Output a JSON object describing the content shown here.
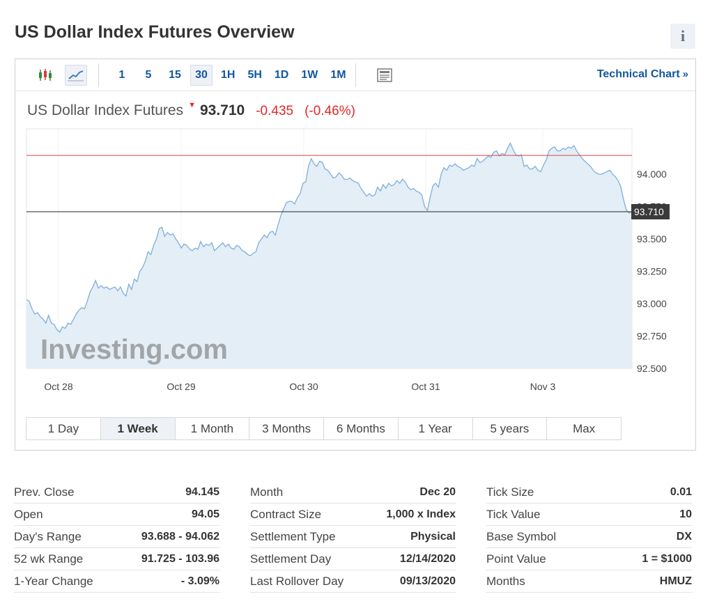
{
  "page": {
    "title": "US Dollar Index Futures Overview",
    "info_icon": "info-icon",
    "info_glyph": "i"
  },
  "toolbar": {
    "chart_type_icons": [
      "candlestick-icon",
      "line-chart-icon"
    ],
    "intervals": [
      "1",
      "5",
      "15",
      "30",
      "1H",
      "5H",
      "1D",
      "1W",
      "1M"
    ],
    "active_interval": "30",
    "news_icon": "news-icon",
    "technical_chart_label": "Technical Chart",
    "technical_chart_arrow": "»"
  },
  "quote": {
    "name": "US Dollar Index Futures",
    "direction_glyph": "▼",
    "price": "93.710",
    "change": "-0.435",
    "change_pct": "(-0.46%)"
  },
  "colors": {
    "accent_link": "#1256a0",
    "negative": "#e32727",
    "line": "#7eaedb",
    "area": "#e4eef6",
    "prev_close_line": "#d64545",
    "current_line": "#222222"
  },
  "chart_data": {
    "type": "area",
    "watermark": "Investing.com",
    "x_tick_labels": [
      "Oct 28",
      "Oct 29",
      "Oct 30",
      "Oct 31",
      "Nov 3"
    ],
    "y_ticks": [
      "94.000",
      "93.750",
      "93.500",
      "93.250",
      "93.000",
      "92.750",
      "92.500"
    ],
    "ylim": [
      92.5,
      94.35
    ],
    "prev_close": 94.145,
    "last_price_label": "93.710",
    "last_price": 93.71,
    "series": [
      {
        "values": [
          93.03,
          93.02,
          92.96,
          92.92,
          92.93,
          92.9,
          92.88,
          92.85,
          92.91,
          92.85,
          92.84,
          92.8,
          92.78,
          92.82,
          92.81,
          92.85,
          92.84,
          92.88,
          92.92,
          92.95,
          92.97,
          92.96,
          93.02,
          93.09,
          93.13,
          93.18,
          93.12,
          93.14,
          93.12,
          93.13,
          93.11,
          93.12,
          93.13,
          93.1,
          93.13,
          93.08,
          93.06,
          93.15,
          93.11,
          93.19,
          93.17,
          93.25,
          93.28,
          93.33,
          93.4,
          93.38,
          93.45,
          93.5,
          93.58,
          93.59,
          93.52,
          93.55,
          93.53,
          93.54,
          93.5,
          93.47,
          93.43,
          93.46,
          93.45,
          93.42,
          93.41,
          93.43,
          93.42,
          93.48,
          93.44,
          93.46,
          93.45,
          93.47,
          93.41,
          93.43,
          93.45,
          93.47,
          93.44,
          93.46,
          93.43,
          93.42,
          93.45,
          93.44,
          93.41,
          93.4,
          93.38,
          93.37,
          93.39,
          93.4,
          93.47,
          93.5,
          93.53,
          93.51,
          93.55,
          93.56,
          93.53,
          93.61,
          93.68,
          93.73,
          93.78,
          93.79,
          93.79,
          93.77,
          93.82,
          93.85,
          93.93,
          93.94,
          94.06,
          94.12,
          94.08,
          94.06,
          94.1,
          94.09,
          94.04,
          94.03,
          94.0,
          93.97,
          93.98,
          94.01,
          93.99,
          93.96,
          93.96,
          93.97,
          93.95,
          93.94,
          93.93,
          93.89,
          93.86,
          93.83,
          93.85,
          93.83,
          93.84,
          93.9,
          93.87,
          93.92,
          93.89,
          93.93,
          93.91,
          93.92,
          93.95,
          93.93,
          93.96,
          93.94,
          93.9,
          93.88,
          93.89,
          93.87,
          93.86,
          93.84,
          93.75,
          93.72,
          93.82,
          93.91,
          93.93,
          93.9,
          94.0,
          94.05,
          94.03,
          94.07,
          94.06,
          94.08,
          94.06,
          94.05,
          94.03,
          94.04,
          94.05,
          94.07,
          94.06,
          94.12,
          94.09,
          94.1,
          94.12,
          94.14,
          94.13,
          94.17,
          94.18,
          94.14,
          94.16,
          94.15,
          94.2,
          94.24,
          94.19,
          94.15,
          94.14,
          94.15,
          94.06,
          94.07,
          94.04,
          94.04,
          94.06,
          94.03,
          94.02,
          94.07,
          94.11,
          94.18,
          94.2,
          94.21,
          94.18,
          94.18,
          94.2,
          94.19,
          94.21,
          94.2,
          94.22,
          94.18,
          94.15,
          94.12,
          94.1,
          94.08,
          94.06,
          94.03,
          94.01,
          94.0,
          94.0,
          94.01,
          94.02,
          94.03,
          94.0,
          93.98,
          93.95,
          93.9,
          93.8,
          93.72,
          93.7,
          93.71
        ]
      }
    ]
  },
  "range_tabs": [
    "1 Day",
    "1 Week",
    "1 Month",
    "3 Months",
    "6 Months",
    "1 Year",
    "5 years",
    "Max"
  ],
  "active_range": "1 Week",
  "stats": [
    [
      {
        "label": "Prev. Close",
        "value": "94.145"
      },
      {
        "label": "Open",
        "value": "94.05"
      },
      {
        "label": "Day's Range",
        "value": "93.688 - 94.062"
      },
      {
        "label": "52 wk Range",
        "value": "91.725 - 103.96"
      },
      {
        "label": "1-Year Change",
        "value": "- 3.09%"
      }
    ],
    [
      {
        "label": "Month",
        "value": "Dec 20"
      },
      {
        "label": "Contract Size",
        "value": "1,000 x Index"
      },
      {
        "label": "Settlement Type",
        "value": "Physical"
      },
      {
        "label": "Settlement Day",
        "value": "12/14/2020"
      },
      {
        "label": "Last Rollover Day",
        "value": "09/13/2020"
      }
    ],
    [
      {
        "label": "Tick Size",
        "value": "0.01"
      },
      {
        "label": "Tick Value",
        "value": "10"
      },
      {
        "label": "Base Symbol",
        "value": "DX"
      },
      {
        "label": "Point Value",
        "value": "1 = $1000"
      },
      {
        "label": "Months",
        "value": "HMUZ"
      }
    ]
  ]
}
